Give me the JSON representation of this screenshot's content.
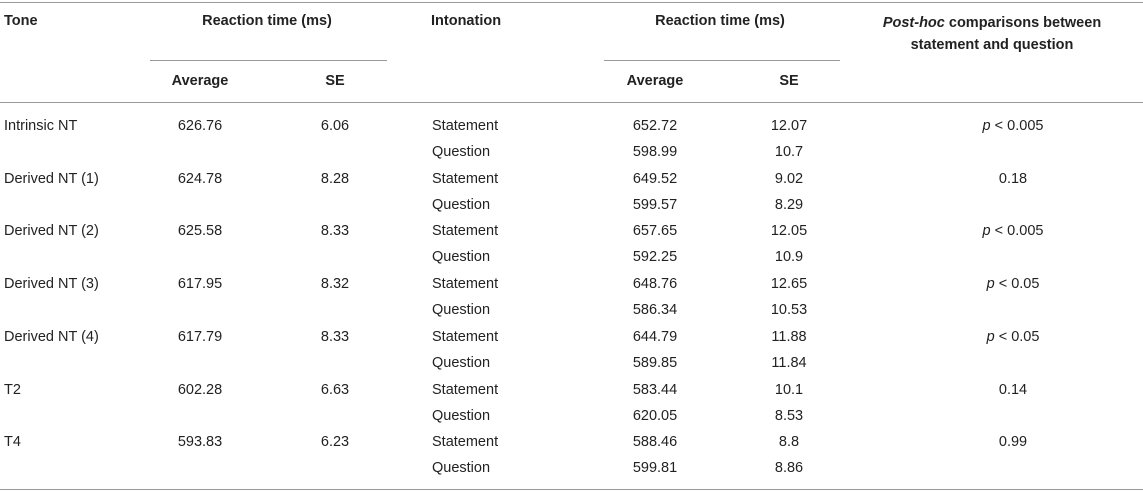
{
  "headers": {
    "tone": "Tone",
    "rt_tone": "Reaction time (ms)",
    "intonation": "Intonation",
    "rt_int": "Reaction time (ms)",
    "posthoc_em": "Post-hoc",
    "posthoc_rest1": " comparisons between",
    "posthoc_rest2": "statement and question",
    "avg1": "Average",
    "se1": "SE",
    "avg2": "Average",
    "se2": "SE"
  },
  "rows": [
    {
      "tone": "Intrinsic NT",
      "avg": "626.76",
      "se": "6.06",
      "stmt": {
        "label": "Statement",
        "avg": "652.72",
        "se": "12.07"
      },
      "q": {
        "label": "Question",
        "avg": "598.99",
        "se": "10.7"
      },
      "ph_p": "p",
      "ph_rest": " < 0.005"
    },
    {
      "tone": "Derived NT (1)",
      "avg": "624.78",
      "se": "8.28",
      "stmt": {
        "label": "Statement",
        "avg": "649.52",
        "se": "9.02"
      },
      "q": {
        "label": "Question",
        "avg": "599.57",
        "se": "8.29"
      },
      "ph_p": "",
      "ph_rest": "0.18"
    },
    {
      "tone": "Derived NT (2)",
      "avg": "625.58",
      "se": "8.33",
      "stmt": {
        "label": "Statement",
        "avg": "657.65",
        "se": "12.05"
      },
      "q": {
        "label": "Question",
        "avg": "592.25",
        "se": "10.9"
      },
      "ph_p": "p",
      "ph_rest": " < 0.005"
    },
    {
      "tone": "Derived NT (3)",
      "avg": "617.95",
      "se": "8.32",
      "stmt": {
        "label": "Statement",
        "avg": "648.76",
        "se": "12.65"
      },
      "q": {
        "label": "Question",
        "avg": "586.34",
        "se": "10.53"
      },
      "ph_p": "p",
      "ph_rest": " < 0.05"
    },
    {
      "tone": "Derived NT (4)",
      "avg": "617.79",
      "se": "8.33",
      "stmt": {
        "label": "Statement",
        "avg": "644.79",
        "se": "11.88"
      },
      "q": {
        "label": "Question",
        "avg": "589.85",
        "se": "11.84"
      },
      "ph_p": "p",
      "ph_rest": " < 0.05"
    },
    {
      "tone": "T2",
      "avg": "602.28",
      "se": "6.63",
      "stmt": {
        "label": "Statement",
        "avg": "583.44",
        "se": "10.1"
      },
      "q": {
        "label": "Question",
        "avg": "620.05",
        "se": "8.53"
      },
      "ph_p": "",
      "ph_rest": "0.14"
    },
    {
      "tone": "T4",
      "avg": "593.83",
      "se": "6.23",
      "stmt": {
        "label": "Statement",
        "avg": "588.46",
        "se": "8.8"
      },
      "q": {
        "label": "Question",
        "avg": "599.81",
        "se": "8.86"
      },
      "ph_p": "",
      "ph_rest": "0.99"
    }
  ]
}
